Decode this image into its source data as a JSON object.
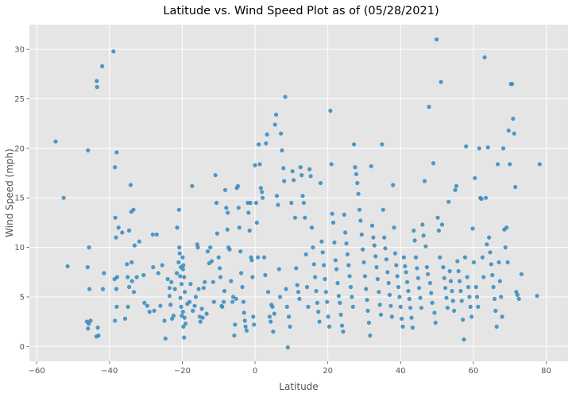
{
  "chart_data": {
    "type": "scatter",
    "title": "Latitude vs. Wind Speed Plot as of (05/28/2021)",
    "xlabel": "Latitude",
    "ylabel": "Wind Speed (mph)",
    "xlim": [
      -62,
      86
    ],
    "ylim": [
      -1.5,
      32.5
    ],
    "xticks": [
      -60,
      -40,
      -20,
      0,
      20,
      40,
      60,
      80
    ],
    "yticks": [
      0,
      5,
      10,
      15,
      20,
      25,
      30
    ],
    "grid": true,
    "color": "#348ABD",
    "background": "#E5E5E5",
    "points": [
      [
        -54.8,
        20.7
      ],
      [
        -52.6,
        15.0
      ],
      [
        -51.5,
        8.1
      ],
      [
        -45.9,
        19.8
      ],
      [
        -45.6,
        10.0
      ],
      [
        -46.0,
        8.0
      ],
      [
        -45.5,
        5.8
      ],
      [
        -46.2,
        2.5
      ],
      [
        -45.7,
        2.3
      ],
      [
        -45.2,
        2.6
      ],
      [
        -45.9,
        1.8
      ],
      [
        -43.5,
        26.8
      ],
      [
        -43.4,
        26.2
      ],
      [
        -42.0,
        28.3
      ],
      [
        -43.2,
        1.9
      ],
      [
        -43.0,
        1.1
      ],
      [
        -43.6,
        1.0
      ],
      [
        -41.5,
        7.4
      ],
      [
        -41.8,
        5.8
      ],
      [
        -38.9,
        29.8
      ],
      [
        -38.5,
        18.1
      ],
      [
        -38.0,
        19.6
      ],
      [
        -38.4,
        13.0
      ],
      [
        -37.5,
        12.0
      ],
      [
        -38.2,
        11.0
      ],
      [
        -37.9,
        7.0
      ],
      [
        -38.6,
        6.8
      ],
      [
        -38.1,
        5.8
      ],
      [
        -38.0,
        4.0
      ],
      [
        -38.5,
        2.6
      ],
      [
        -36.5,
        11.5
      ],
      [
        -35.2,
        8.3
      ],
      [
        -35.0,
        7.0
      ],
      [
        -34.6,
        6.0
      ],
      [
        -35.7,
        2.8
      ],
      [
        -34.9,
        4.0
      ],
      [
        -34.2,
        16.3
      ],
      [
        -34.0,
        13.6
      ],
      [
        -33.4,
        13.8
      ],
      [
        -34.6,
        11.7
      ],
      [
        -33.1,
        10.2
      ],
      [
        -33.9,
        8.5
      ],
      [
        -33.8,
        6.6
      ],
      [
        -33.3,
        5.5
      ],
      [
        -32.5,
        7.0
      ],
      [
        -31.8,
        10.6
      ],
      [
        -30.6,
        7.2
      ],
      [
        -30.4,
        4.4
      ],
      [
        -29.6,
        4.1
      ],
      [
        -29.0,
        3.5
      ],
      [
        -28.1,
        11.3
      ],
      [
        -27.7,
        3.6
      ],
      [
        -28.0,
        8.0
      ],
      [
        -27.0,
        11.3
      ],
      [
        -26.6,
        7.4
      ],
      [
        -26.0,
        4.1
      ],
      [
        -25.5,
        8.2
      ],
      [
        -24.9,
        2.6
      ],
      [
        -24.6,
        0.8
      ],
      [
        -24.0,
        6.8
      ],
      [
        -23.5,
        5.9
      ],
      [
        -23.0,
        6.5
      ],
      [
        -23.5,
        5.1
      ],
      [
        -23.2,
        4.2
      ],
      [
        -22.8,
        2.8
      ],
      [
        -22.4,
        3.1
      ],
      [
        -22.0,
        5.8
      ],
      [
        -21.5,
        7.4
      ],
      [
        -21.0,
        8.5
      ],
      [
        -21.4,
        12.0
      ],
      [
        -20.9,
        13.8
      ],
      [
        -20.8,
        10.0
      ],
      [
        -20.7,
        9.4
      ],
      [
        -20.4,
        8.0
      ],
      [
        -20.6,
        7.1
      ],
      [
        -19.9,
        9.0
      ],
      [
        -19.7,
        8.2
      ],
      [
        -19.8,
        7.8
      ],
      [
        -19.5,
        7.0
      ],
      [
        -20.2,
        6.3
      ],
      [
        -19.3,
        5.5
      ],
      [
        -20.5,
        4.9
      ],
      [
        -20.3,
        4.0
      ],
      [
        -19.8,
        3.5
      ],
      [
        -20.1,
        3.1
      ],
      [
        -19.4,
        2.9
      ],
      [
        -19.1,
        2.3
      ],
      [
        -19.7,
        2.0
      ],
      [
        -19.5,
        0.9
      ],
      [
        -18.6,
        4.3
      ],
      [
        -18.0,
        4.5
      ],
      [
        -17.7,
        6.3
      ],
      [
        -17.3,
        16.2
      ],
      [
        -17.1,
        3.6
      ],
      [
        -16.6,
        4.1
      ],
      [
        -16.3,
        5.0
      ],
      [
        -15.9,
        10.3
      ],
      [
        -15.7,
        10.0
      ],
      [
        -15.5,
        5.8
      ],
      [
        -15.2,
        3.0
      ],
      [
        -15.0,
        2.5
      ],
      [
        -14.6,
        3.8
      ],
      [
        -14.4,
        2.9
      ],
      [
        -14.1,
        5.9
      ],
      [
        -13.8,
        6.5
      ],
      [
        -13.3,
        3.3
      ],
      [
        -13.0,
        9.6
      ],
      [
        -12.6,
        8.4
      ],
      [
        -12.3,
        10.0
      ],
      [
        -11.9,
        8.6
      ],
      [
        -11.5,
        6.5
      ],
      [
        -11.3,
        4.5
      ],
      [
        -10.9,
        17.3
      ],
      [
        -10.6,
        14.5
      ],
      [
        -10.4,
        11.4
      ],
      [
        -10.0,
        9.0
      ],
      [
        -9.7,
        7.9
      ],
      [
        -9.5,
        7.0
      ],
      [
        -9.2,
        4.1
      ],
      [
        -9.0,
        4.0
      ],
      [
        -8.6,
        4.5
      ],
      [
        -8.4,
        5.6
      ],
      [
        -8.2,
        15.8
      ],
      [
        -7.9,
        14.0
      ],
      [
        -7.6,
        11.8
      ],
      [
        -7.5,
        13.5
      ],
      [
        -7.3,
        10.0
      ],
      [
        -7.0,
        9.8
      ],
      [
        -6.6,
        6.6
      ],
      [
        -6.2,
        4.5
      ],
      [
        -6.0,
        5.0
      ],
      [
        -5.7,
        1.1
      ],
      [
        -5.5,
        2.2
      ],
      [
        -5.2,
        4.8
      ],
      [
        -5.0,
        16.0
      ],
      [
        -4.7,
        16.2
      ],
      [
        -4.5,
        14.0
      ],
      [
        -4.3,
        12.0
      ],
      [
        -4.0,
        9.6
      ],
      [
        -3.8,
        7.4
      ],
      [
        -3.5,
        6.0
      ],
      [
        -3.2,
        4.5
      ],
      [
        -3.0,
        3.4
      ],
      [
        -2.8,
        2.6
      ],
      [
        -2.6,
        2.0
      ],
      [
        -2.3,
        1.6
      ],
      [
        -2.0,
        14.5
      ],
      [
        -1.8,
        13.5
      ],
      [
        -1.5,
        11.7
      ],
      [
        -1.3,
        14.5
      ],
      [
        -1.1,
        9.0
      ],
      [
        -0.9,
        8.7
      ],
      [
        -0.7,
        7.0
      ],
      [
        -0.5,
        3.0
      ],
      [
        -0.3,
        2.2
      ],
      [
        0.0,
        18.3
      ],
      [
        0.3,
        14.5
      ],
      [
        0.5,
        12.5
      ],
      [
        0.8,
        9.0
      ],
      [
        1.0,
        20.4
      ],
      [
        1.3,
        18.4
      ],
      [
        1.6,
        16.0
      ],
      [
        1.9,
        15.6
      ],
      [
        2.1,
        15.0
      ],
      [
        2.5,
        9.0
      ],
      [
        2.8,
        7.2
      ],
      [
        3.0,
        20.5
      ],
      [
        3.3,
        21.4
      ],
      [
        3.6,
        5.5
      ],
      [
        4.0,
        3.0
      ],
      [
        4.3,
        2.5
      ],
      [
        4.5,
        4.2
      ],
      [
        4.8,
        4.0
      ],
      [
        5.0,
        1.5
      ],
      [
        5.3,
        3.3
      ],
      [
        5.5,
        22.4
      ],
      [
        5.8,
        23.4
      ],
      [
        6.0,
        15.2
      ],
      [
        6.3,
        14.3
      ],
      [
        6.6,
        7.8
      ],
      [
        6.9,
        5.0
      ],
      [
        7.1,
        21.5
      ],
      [
        7.4,
        19.8
      ],
      [
        7.8,
        18.0
      ],
      [
        8.0,
        16.7
      ],
      [
        8.3,
        25.2
      ],
      [
        8.5,
        5.8
      ],
      [
        8.8,
        4.0
      ],
      [
        9.0,
        -0.1
      ],
      [
        9.3,
        3.0
      ],
      [
        9.6,
        2.0
      ],
      [
        10.0,
        14.5
      ],
      [
        10.3,
        17.7
      ],
      [
        10.6,
        16.8
      ],
      [
        11.0,
        13.0
      ],
      [
        11.3,
        7.9
      ],
      [
        11.6,
        6.2
      ],
      [
        11.9,
        5.5
      ],
      [
        12.2,
        4.8
      ],
      [
        12.5,
        18.1
      ],
      [
        12.8,
        17.3
      ],
      [
        13.1,
        15.2
      ],
      [
        13.4,
        14.5
      ],
      [
        13.7,
        13.0
      ],
      [
        14.0,
        9.3
      ],
      [
        14.3,
        6.0
      ],
      [
        14.6,
        4.0
      ],
      [
        15.0,
        17.9
      ],
      [
        15.3,
        17.2
      ],
      [
        15.6,
        12.0
      ],
      [
        15.9,
        10.0
      ],
      [
        16.2,
        8.3
      ],
      [
        16.5,
        7.0
      ],
      [
        16.8,
        5.6
      ],
      [
        17.1,
        4.4
      ],
      [
        17.4,
        3.5
      ],
      [
        17.7,
        2.5
      ],
      [
        18.0,
        16.5
      ],
      [
        18.3,
        10.6
      ],
      [
        18.6,
        9.5
      ],
      [
        18.9,
        8.2
      ],
      [
        19.2,
        6.8
      ],
      [
        19.5,
        5.5
      ],
      [
        19.8,
        4.5
      ],
      [
        20.1,
        3.0
      ],
      [
        20.4,
        2.0
      ],
      [
        20.7,
        23.8
      ],
      [
        21.0,
        18.4
      ],
      [
        21.2,
        13.4
      ],
      [
        21.5,
        12.5
      ],
      [
        21.8,
        10.5
      ],
      [
        22.1,
        8.7
      ],
      [
        22.4,
        7.8
      ],
      [
        22.7,
        6.4
      ],
      [
        23.0,
        5.1
      ],
      [
        23.3,
        4.4
      ],
      [
        23.6,
        3.2
      ],
      [
        23.9,
        2.1
      ],
      [
        24.2,
        1.5
      ],
      [
        24.5,
        13.3
      ],
      [
        24.8,
        11.5
      ],
      [
        25.1,
        10.4
      ],
      [
        25.4,
        9.3
      ],
      [
        25.7,
        8.2
      ],
      [
        26.0,
        7.1
      ],
      [
        26.3,
        6.0
      ],
      [
        26.6,
        5.0
      ],
      [
        26.9,
        4.0
      ],
      [
        27.2,
        20.4
      ],
      [
        27.5,
        18.1
      ],
      [
        27.8,
        17.4
      ],
      [
        28.1,
        16.5
      ],
      [
        28.4,
        15.4
      ],
      [
        28.7,
        13.8
      ],
      [
        29.0,
        12.7
      ],
      [
        29.3,
        11.3
      ],
      [
        29.6,
        9.8
      ],
      [
        29.9,
        8.5
      ],
      [
        30.2,
        7.1
      ],
      [
        30.5,
        5.8
      ],
      [
        30.8,
        4.7
      ],
      [
        31.0,
        3.6
      ],
      [
        31.3,
        2.4
      ],
      [
        31.6,
        1.1
      ],
      [
        31.9,
        18.2
      ],
      [
        32.2,
        12.2
      ],
      [
        32.5,
        11.0
      ],
      [
        32.8,
        10.2
      ],
      [
        33.1,
        9.1
      ],
      [
        33.4,
        8.0
      ],
      [
        33.7,
        6.8
      ],
      [
        34.0,
        5.5
      ],
      [
        34.3,
        4.2
      ],
      [
        34.6,
        3.2
      ],
      [
        34.9,
        20.4
      ],
      [
        35.2,
        13.8
      ],
      [
        35.5,
        11.0
      ],
      [
        35.8,
        9.9
      ],
      [
        36.1,
        8.8
      ],
      [
        36.4,
        7.5
      ],
      [
        36.7,
        6.4
      ],
      [
        37.0,
        5.2
      ],
      [
        37.3,
        4.1
      ],
      [
        37.6,
        3.0
      ],
      [
        37.9,
        16.3
      ],
      [
        38.2,
        12.0
      ],
      [
        38.5,
        9.4
      ],
      [
        38.8,
        8.2
      ],
      [
        39.1,
        7.1
      ],
      [
        39.4,
        6.0
      ],
      [
        39.7,
        5.0
      ],
      [
        40.0,
        4.0
      ],
      [
        40.3,
        2.8
      ],
      [
        40.6,
        2.0
      ],
      [
        40.9,
        9.0
      ],
      [
        41.2,
        8.1
      ],
      [
        41.5,
        7.5
      ],
      [
        41.8,
        6.5
      ],
      [
        42.1,
        5.6
      ],
      [
        42.4,
        4.8
      ],
      [
        42.7,
        3.9
      ],
      [
        43.0,
        2.9
      ],
      [
        43.3,
        1.9
      ],
      [
        43.6,
        11.7
      ],
      [
        43.9,
        10.7
      ],
      [
        44.2,
        9.0
      ],
      [
        44.5,
        7.9
      ],
      [
        44.8,
        6.9
      ],
      [
        45.1,
        5.9
      ],
      [
        45.4,
        4.9
      ],
      [
        45.7,
        3.9
      ],
      [
        46.0,
        12.3
      ],
      [
        46.3,
        11.2
      ],
      [
        46.6,
        16.7
      ],
      [
        46.9,
        10.1
      ],
      [
        47.2,
        8.0
      ],
      [
        47.5,
        7.3
      ],
      [
        47.8,
        24.2
      ],
      [
        48.1,
        6.4
      ],
      [
        48.4,
        5.4
      ],
      [
        48.7,
        4.4
      ],
      [
        49.0,
        18.5
      ],
      [
        49.3,
        3.4
      ],
      [
        49.6,
        2.4
      ],
      [
        49.9,
        31.0
      ],
      [
        50.2,
        13.0
      ],
      [
        50.5,
        11.7
      ],
      [
        50.8,
        9.0
      ],
      [
        51.1,
        26.7
      ],
      [
        51.4,
        12.3
      ],
      [
        51.7,
        8.0
      ],
      [
        52.0,
        6.9
      ],
      [
        52.3,
        5.9
      ],
      [
        52.6,
        4.9
      ],
      [
        52.9,
        3.9
      ],
      [
        53.2,
        14.6
      ],
      [
        53.5,
        7.6
      ],
      [
        53.8,
        6.6
      ],
      [
        54.1,
        5.6
      ],
      [
        54.4,
        4.6
      ],
      [
        54.7,
        3.6
      ],
      [
        55.0,
        15.8
      ],
      [
        55.3,
        16.2
      ],
      [
        55.6,
        8.6
      ],
      [
        55.9,
        7.6
      ],
      [
        56.2,
        6.6
      ],
      [
        56.5,
        5.6
      ],
      [
        56.8,
        4.6
      ],
      [
        57.1,
        2.7
      ],
      [
        57.4,
        0.7
      ],
      [
        57.7,
        9.0
      ],
      [
        58.0,
        20.2
      ],
      [
        58.3,
        7.0
      ],
      [
        58.6,
        6.0
      ],
      [
        58.9,
        5.0
      ],
      [
        59.2,
        4.0
      ],
      [
        59.5,
        3.0
      ],
      [
        59.8,
        11.9
      ],
      [
        60.1,
        8.5
      ],
      [
        60.4,
        17.0
      ],
      [
        60.7,
        6.0
      ],
      [
        61.0,
        5.0
      ],
      [
        61.3,
        4.0
      ],
      [
        61.6,
        20.0
      ],
      [
        61.9,
        15.0
      ],
      [
        62.2,
        14.9
      ],
      [
        62.5,
        9.0
      ],
      [
        62.8,
        7.0
      ],
      [
        63.1,
        29.2
      ],
      [
        63.4,
        15.0
      ],
      [
        63.7,
        10.3
      ],
      [
        64.0,
        20.1
      ],
      [
        64.3,
        11.0
      ],
      [
        64.6,
        9.5
      ],
      [
        64.9,
        8.3
      ],
      [
        65.2,
        7.2
      ],
      [
        65.5,
        6.0
      ],
      [
        65.8,
        4.8
      ],
      [
        66.1,
        3.6
      ],
      [
        66.4,
        2.0
      ],
      [
        66.7,
        18.4
      ],
      [
        67.0,
        8.5
      ],
      [
        67.3,
        6.6
      ],
      [
        67.6,
        5.0
      ],
      [
        67.9,
        3.0
      ],
      [
        68.2,
        20.0
      ],
      [
        68.5,
        11.8
      ],
      [
        68.8,
        10.0
      ],
      [
        69.1,
        12.0
      ],
      [
        69.4,
        8.5
      ],
      [
        69.7,
        21.8
      ],
      [
        70.0,
        18.4
      ],
      [
        70.3,
        26.5
      ],
      [
        70.6,
        26.5
      ],
      [
        70.9,
        23.0
      ],
      [
        71.2,
        21.5
      ],
      [
        71.5,
        16.1
      ],
      [
        71.8,
        5.5
      ],
      [
        72.1,
        5.2
      ],
      [
        72.5,
        4.8
      ],
      [
        73.2,
        7.3
      ],
      [
        77.5,
        5.1
      ],
      [
        78.2,
        18.4
      ]
    ]
  }
}
